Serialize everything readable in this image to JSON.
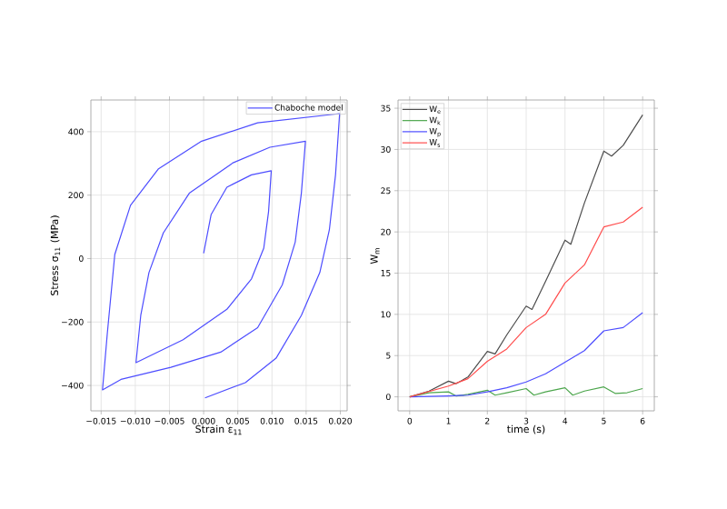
{
  "chart_data": [
    {
      "type": "line",
      "xlabel": "Strain ε$_{11}$",
      "ylabel": "Stress σ$_{11}$ (MPa)",
      "xlim": [
        -0.0165,
        0.021
      ],
      "ylim": [
        -480,
        500
      ],
      "xticks": [
        {
          "value": -0.015,
          "label": "−0.015"
        },
        {
          "value": -0.01,
          "label": "−0.010"
        },
        {
          "value": -0.005,
          "label": "−0.005"
        },
        {
          "value": 0.0,
          "label": "0.000"
        },
        {
          "value": 0.005,
          "label": "0.005"
        },
        {
          "value": 0.01,
          "label": "0.010"
        },
        {
          "value": 0.015,
          "label": "0.015"
        },
        {
          "value": 0.02,
          "label": "0.020"
        }
      ],
      "yticks": [
        {
          "value": -400,
          "label": "−400"
        },
        {
          "value": -200,
          "label": "−200"
        },
        0,
        200,
        400
      ],
      "grid": true,
      "legend": "top right",
      "series": [
        {
          "name": "Chaboche model",
          "color": "#4d4dff",
          "x": [
            0,
            0.0011,
            0.0034,
            0.007,
            0.0099,
            0.0095,
            0.0088,
            0.007,
            0.0034,
            -0.003,
            -0.0099,
            -0.0092,
            -0.008,
            -0.0059,
            -0.0021,
            0.0043,
            0.0097,
            0.0149,
            0.0143,
            0.0134,
            0.0115,
            0.0079,
            0.0025,
            -0.0048,
            -0.0121,
            -0.0148,
            -0.0141,
            -0.013,
            -0.0107,
            -0.0066,
            -0.0003,
            0.0079,
            0.0199,
            0.0193,
            0.0184,
            0.017,
            0.0143,
            0.0106,
            0.0061,
            0.0002
          ],
          "values": [
            17,
            139,
            225,
            264,
            277,
            148,
            33,
            -64,
            -160,
            -256,
            -328,
            -179,
            -44,
            81,
            206,
            302,
            351,
            370,
            206,
            52,
            -83,
            -218,
            -295,
            -343,
            -381,
            -414,
            -237,
            13,
            168,
            283,
            370,
            428,
            457,
            264,
            91,
            -44,
            -179,
            -314,
            -391,
            -439
          ]
        }
      ]
    },
    {
      "type": "line",
      "xlabel": "time (s)",
      "ylabel": "W$_{m}$",
      "xlim": [
        -0.3,
        6.3
      ],
      "ylim": [
        -1.7,
        36
      ],
      "xticks": [
        0,
        1,
        2,
        3,
        4,
        5,
        6
      ],
      "yticks": [
        0,
        5,
        10,
        15,
        20,
        25,
        30,
        35
      ],
      "grid": true,
      "legend": "top left",
      "series": [
        {
          "name": "W$_{e}$",
          "color": "#4d4d4d",
          "x": [
            0,
            0.5,
            1,
            1.2,
            1.5,
            2,
            2.2,
            2.5,
            3,
            3.15,
            3.5,
            4,
            4.15,
            4.5,
            5,
            5.2,
            5.5,
            6
          ],
          "values": [
            0,
            0.7,
            1.9,
            1.6,
            2.4,
            5.5,
            5.2,
            7.5,
            11,
            10.6,
            14,
            19,
            18.5,
            23.5,
            29.8,
            29.2,
            30.5,
            34.2
          ]
        },
        {
          "name": "W$_{k}$",
          "color": "#4da64d",
          "x": [
            0,
            0.5,
            1,
            1.2,
            1.5,
            2,
            2.2,
            2.5,
            3,
            3.2,
            3.5,
            4,
            4.2,
            4.5,
            5,
            5.3,
            5.6,
            6
          ],
          "values": [
            0,
            0.5,
            0.6,
            0.1,
            0.3,
            0.8,
            0.2,
            0.5,
            1.0,
            0.2,
            0.6,
            1.1,
            0.2,
            0.7,
            1.2,
            0.4,
            0.5,
            1.0
          ]
        },
        {
          "name": "W$_{p}$",
          "color": "#4d4dff",
          "x": [
            0,
            1,
            1.5,
            2,
            2.5,
            3,
            3.5,
            4,
            4.5,
            5,
            5.5,
            6
          ],
          "values": [
            0,
            0.1,
            0.2,
            0.6,
            1.1,
            1.8,
            2.8,
            4.2,
            5.6,
            8.0,
            8.4,
            10.2
          ]
        },
        {
          "name": "W$_{s}$",
          "color": "#ff4d4d",
          "x": [
            0,
            1,
            1.5,
            2,
            2.5,
            3,
            3.5,
            4,
            4.5,
            5,
            5.5,
            6
          ],
          "values": [
            0,
            1.3,
            2.2,
            4.3,
            5.8,
            8.4,
            10,
            13.8,
            16,
            20.6,
            21.2,
            23
          ]
        }
      ]
    }
  ]
}
